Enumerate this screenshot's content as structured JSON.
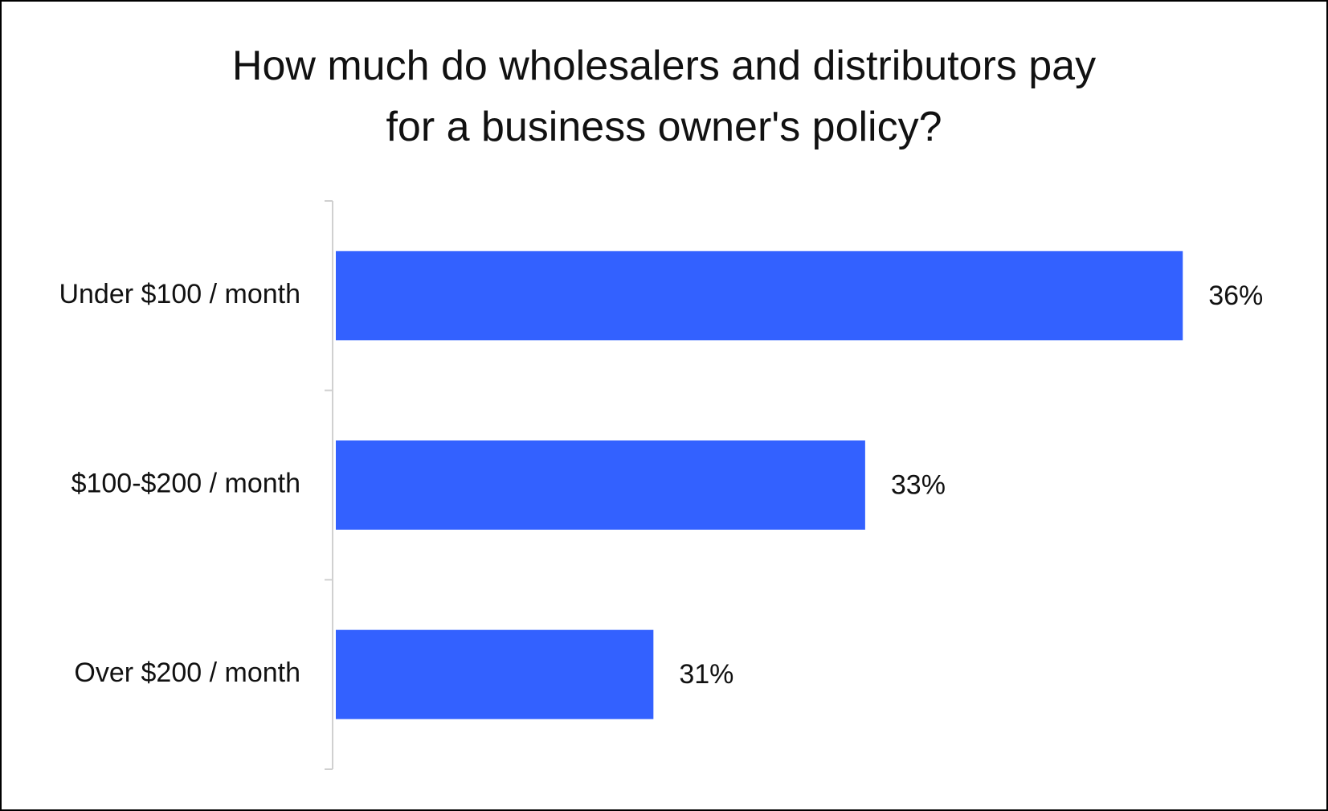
{
  "chart_data": {
    "type": "bar",
    "orientation": "horizontal",
    "title": "How much do wholesalers and distributors pay\nfor a business owner's policy?",
    "categories": [
      "Under $100 / month",
      "$100-$200 / month",
      "Over $200 / month"
    ],
    "values": [
      36,
      33,
      31
    ],
    "value_labels": [
      "36%",
      "33%",
      "31%"
    ],
    "color": "#3361ff",
    "xlim": [
      28,
      37
    ]
  }
}
